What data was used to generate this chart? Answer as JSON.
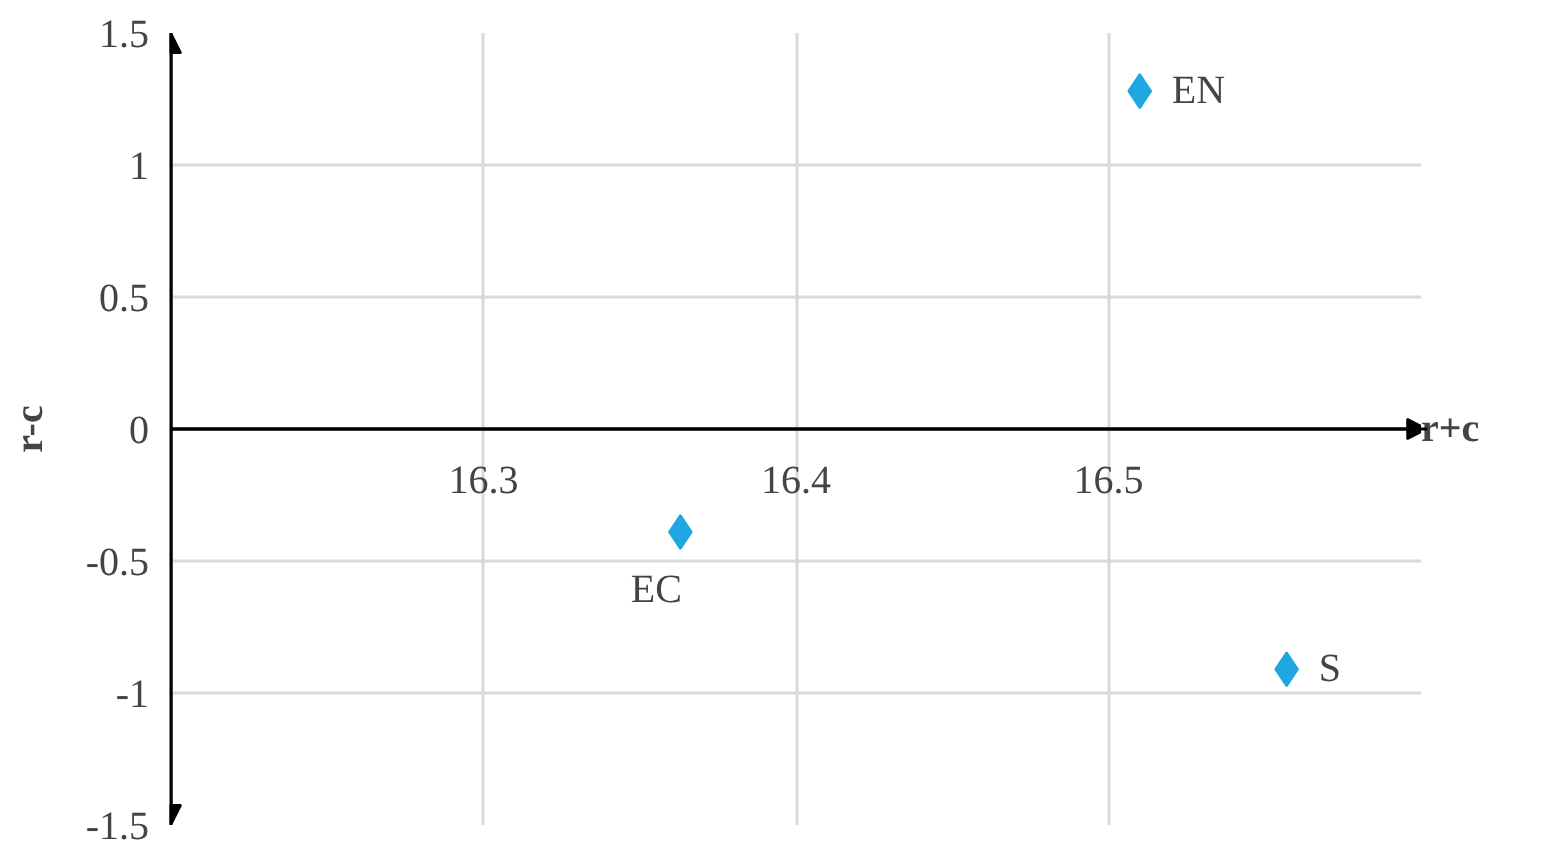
{
  "chart_data": {
    "type": "scatter",
    "xlabel": "r+c",
    "ylabel": "r-c",
    "x": [
      16.51,
      16.363,
      16.557
    ],
    "series": [
      {
        "color": "#1ea7e1",
        "values": [
          1.28,
          -0.39,
          -0.91
        ]
      }
    ],
    "annotations": [
      {
        "text": "EN",
        "x": 16.51,
        "y": 1.28
      },
      {
        "text": "EC",
        "x": 16.363,
        "y": -0.39
      },
      {
        "text": "S",
        "x": 16.557,
        "y": -0.91
      }
    ],
    "xlim": [
      16.2,
      16.6
    ],
    "xticks": [
      16.3,
      16.4,
      16.5
    ],
    "ylim": [
      -1.5,
      1.5
    ],
    "yticks": [
      -1.5,
      -1,
      -0.5,
      0,
      0.5,
      1,
      1.5
    ],
    "grid": true,
    "marker": "diamond"
  }
}
